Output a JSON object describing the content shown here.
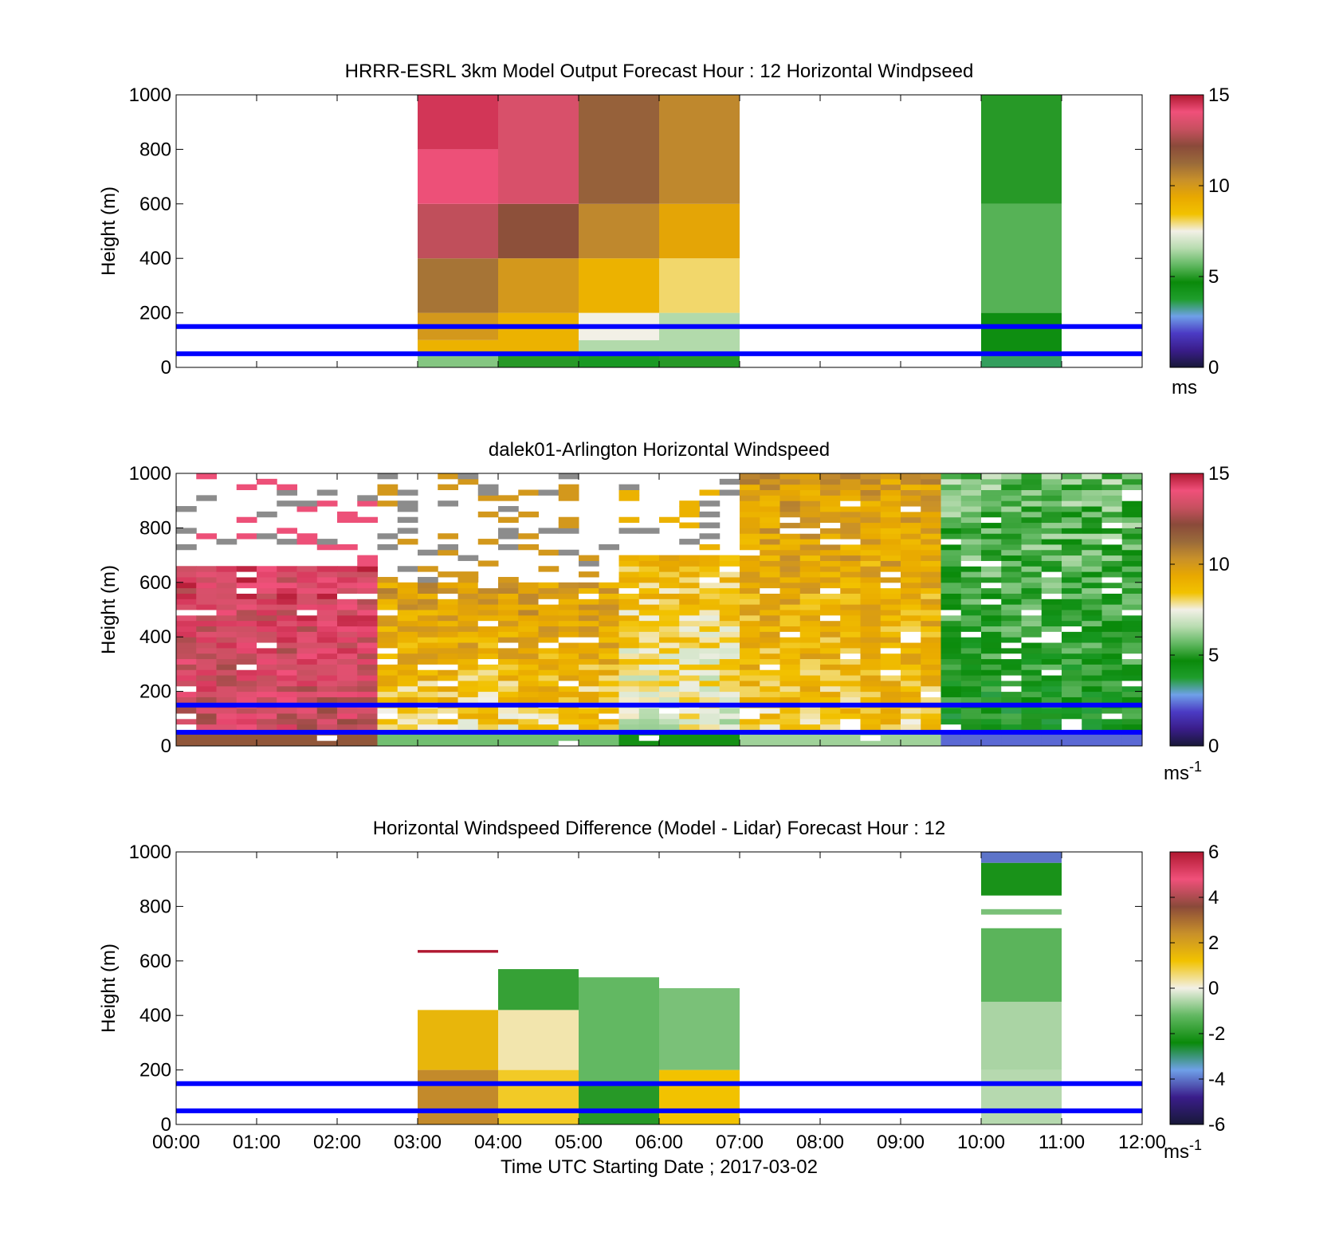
{
  "colormap_speed": [
    "#181838",
    "#3a1d8a",
    "#4b3bc4",
    "#6fa0e8",
    "#1f9e2c",
    "#0a8a0a",
    "#62b862",
    "#b8dcb0",
    "#f2f0e6",
    "#f2c200",
    "#e8a800",
    "#c8902a",
    "#9a6a3a",
    "#8a4a3a",
    "#c85060",
    "#f0507a",
    "#b01830"
  ],
  "colormap_diff": [
    "#181838",
    "#3a1d8a",
    "#6fa0e8",
    "#0a8a0a",
    "#62b862",
    "#f2f0e6",
    "#f2c200",
    "#c8902a",
    "#8a4a3a",
    "#f0507a",
    "#b01830"
  ],
  "reference_lines": {
    "heights_m": [
      50,
      150
    ],
    "color": "#0000ff"
  },
  "x_tick_labels": [
    "00:00",
    "01:00",
    "02:00",
    "03:00",
    "04:00",
    "05:00",
    "06:00",
    "07:00",
    "08:00",
    "09:00",
    "10:00",
    "11:00",
    "12:00"
  ],
  "x_axis_label": "Time UTC  Starting Date ; 2017-03-02",
  "chart_data": [
    {
      "type": "heatmap",
      "title": "HRRR-ESRL 3km Model Output   Forecast Hour : 12 Horizontal Windpseed",
      "ylabel": "Height (m)",
      "ylim": [
        0,
        1000
      ],
      "xlim_hours": [
        0,
        12
      ],
      "y_ticks": [
        "0",
        "200",
        "400",
        "600",
        "800",
        "1000"
      ],
      "colorbar": {
        "ticks": [
          "0",
          "5",
          "10",
          "15"
        ],
        "unit": "ms",
        "range": [
          0,
          15
        ],
        "colormap": "speed"
      },
      "columns": [
        {
          "x_start_hr": 3,
          "x_end_hr": 4,
          "values": [
            {
              "z": [
                0,
                50
              ],
              "v": 6
            },
            {
              "z": [
                50,
                100
              ],
              "v": 9
            },
            {
              "z": [
                100,
                200
              ],
              "v": 10
            },
            {
              "z": [
                200,
                400
              ],
              "v": 11
            },
            {
              "z": [
                400,
                600
              ],
              "v": 13
            },
            {
              "z": [
                600,
                800
              ],
              "v": 14
            },
            {
              "z": [
                800,
                1000
              ],
              "v": 14.5
            }
          ]
        },
        {
          "x_start_hr": 4,
          "x_end_hr": 5,
          "values": [
            {
              "z": [
                0,
                50
              ],
              "v": 5
            },
            {
              "z": [
                50,
                200
              ],
              "v": 9
            },
            {
              "z": [
                200,
                400
              ],
              "v": 10
            },
            {
              "z": [
                400,
                600
              ],
              "v": 12
            },
            {
              "z": [
                600,
                1000
              ],
              "v": 13.5
            }
          ]
        },
        {
          "x_start_hr": 5,
          "x_end_hr": 6,
          "values": [
            {
              "z": [
                0,
                50
              ],
              "v": 4
            },
            {
              "z": [
                50,
                100
              ],
              "v": 6.5
            },
            {
              "z": [
                100,
                200
              ],
              "v": 7.5
            },
            {
              "z": [
                200,
                400
              ],
              "v": 9
            },
            {
              "z": [
                400,
                600
              ],
              "v": 10.5
            },
            {
              "z": [
                600,
                1000
              ],
              "v": 11.5
            }
          ]
        },
        {
          "x_start_hr": 6,
          "x_end_hr": 7,
          "values": [
            {
              "z": [
                0,
                50
              ],
              "v": 5
            },
            {
              "z": [
                50,
                200
              ],
              "v": 6.5
            },
            {
              "z": [
                200,
                400
              ],
              "v": 8
            },
            {
              "z": [
                400,
                600
              ],
              "v": 9.5
            },
            {
              "z": [
                600,
                1000
              ],
              "v": 10.5
            }
          ]
        },
        {
          "x_start_hr": 10,
          "x_end_hr": 11,
          "values": [
            {
              "z": [
                0,
                50
              ],
              "v": 3.5
            },
            {
              "z": [
                50,
                200
              ],
              "v": 4.5
            },
            {
              "z": [
                200,
                600
              ],
              "v": 5.5
            },
            {
              "z": [
                600,
                1000
              ],
              "v": 5
            }
          ]
        }
      ]
    },
    {
      "type": "heatmap",
      "title": "dalek01-Arlington  Horizontal Windspeed",
      "ylabel": "Height (m)",
      "ylim": [
        0,
        1000
      ],
      "xlim_hours": [
        0,
        12
      ],
      "y_ticks": [
        "0",
        "200",
        "400",
        "600",
        "800",
        "1000"
      ],
      "colorbar": {
        "ticks": [
          "0",
          "5",
          "10",
          "15"
        ],
        "unit": "ms",
        "unit_exponent": "-1",
        "range": [
          0,
          15
        ],
        "colormap": "speed"
      },
      "regimes": [
        {
          "x_start_hr": 0,
          "x_end_hr": 2.5,
          "top_m": 650,
          "v_low": 13,
          "v_high": 14
        },
        {
          "x_start_hr": 2.5,
          "x_end_hr": 5.5,
          "top_m": 600,
          "v_low": 7,
          "v_high": 10
        },
        {
          "x_start_hr": 5.5,
          "x_end_hr": 7,
          "top_m": 700,
          "v_low": 6,
          "v_high": 9
        },
        {
          "x_start_hr": 7,
          "x_end_hr": 9.5,
          "top_m": 1000,
          "v_low": 7.5,
          "v_high": 10
        },
        {
          "x_start_hr": 9.5,
          "x_end_hr": 12,
          "top_m": 1000,
          "v_low": 3.5,
          "v_high": 6
        }
      ]
    },
    {
      "type": "heatmap",
      "title": "Horizontal Windspeed Difference (Model - Lidar) Forecast Hour : 12",
      "ylabel": "Height (m)",
      "ylim": [
        0,
        1000
      ],
      "xlim_hours": [
        0,
        12
      ],
      "y_ticks": [
        "0",
        "200",
        "400",
        "600",
        "800",
        "1000"
      ],
      "colorbar": {
        "ticks": [
          "-6",
          "-4",
          "-2",
          "0",
          "2",
          "4",
          "6"
        ],
        "unit": "ms",
        "unit_exponent": "-1",
        "range": [
          -6,
          6
        ],
        "colormap": "diff"
      },
      "columns": [
        {
          "x_start_hr": 3,
          "x_end_hr": 4,
          "values": [
            {
              "z": [
                0,
                200
              ],
              "v": 2.5
            },
            {
              "z": [
                200,
                420
              ],
              "v": 1.5
            },
            {
              "z": [
                630,
                640
              ],
              "v": 6
            }
          ]
        },
        {
          "x_start_hr": 4,
          "x_end_hr": 5,
          "values": [
            {
              "z": [
                0,
                200
              ],
              "v": 1
            },
            {
              "z": [
                200,
                420
              ],
              "v": 0.3
            },
            {
              "z": [
                420,
                570
              ],
              "v": -1.8
            }
          ]
        },
        {
          "x_start_hr": 5,
          "x_end_hr": 6,
          "values": [
            {
              "z": [
                0,
                150
              ],
              "v": -2
            },
            {
              "z": [
                150,
                540
              ],
              "v": -1.2
            }
          ]
        },
        {
          "x_start_hr": 6,
          "x_end_hr": 7,
          "values": [
            {
              "z": [
                0,
                200
              ],
              "v": 1.2
            },
            {
              "z": [
                200,
                500
              ],
              "v": -1
            }
          ]
        },
        {
          "x_start_hr": 10,
          "x_end_hr": 11,
          "values": [
            {
              "z": [
                0,
                200
              ],
              "v": -0.5
            },
            {
              "z": [
                200,
                450
              ],
              "v": -0.6
            },
            {
              "z": [
                450,
                720
              ],
              "v": -1.3
            },
            {
              "z": [
                770,
                790
              ],
              "v": -1
            },
            {
              "z": [
                840,
                960
              ],
              "v": -2.2
            },
            {
              "z": [
                960,
                1000
              ],
              "v": -4
            }
          ]
        }
      ]
    }
  ]
}
